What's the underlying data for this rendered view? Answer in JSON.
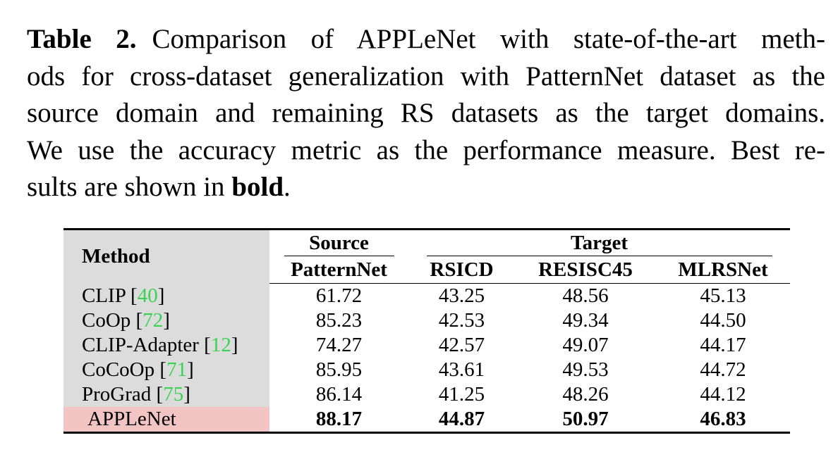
{
  "caption": {
    "label": "Table 2.",
    "lines": [
      "Comparison of APPLeNet with state-of-the-art meth-",
      "ods for cross-dataset generalization with PatternNet dataset as the",
      "source domain and remaining RS datasets as the target domains.",
      "We use the accuracy metric as the performance measure. Best re-"
    ],
    "last_line_prefix": "sults are shown in ",
    "last_line_bold": "bold",
    "last_line_suffix": "."
  },
  "table": {
    "method_header": "Method",
    "source_header": "Source",
    "target_header": "Target",
    "columns": [
      "PatternNet",
      "RSICD",
      "RESISC45",
      "MLRSNet"
    ],
    "rows": [
      {
        "method": "CLIP ",
        "cite": "40",
        "values": [
          "61.72",
          "43.25",
          "48.56",
          "45.13"
        ]
      },
      {
        "method": "CoOp ",
        "cite": "72",
        "values": [
          "85.23",
          "42.53",
          "49.34",
          "44.50"
        ]
      },
      {
        "method": "CLIP-Adapter ",
        "cite": "12",
        "values": [
          "74.27",
          "42.57",
          "49.07",
          "44.17"
        ]
      },
      {
        "method": "CoCoOp ",
        "cite": "71",
        "values": [
          "85.95",
          "43.61",
          "49.53",
          "44.72"
        ]
      },
      {
        "method": "ProGrad ",
        "cite": "75",
        "values": [
          "86.14",
          "41.25",
          "48.26",
          "44.12"
        ]
      }
    ],
    "ours": {
      "method": "APPLeNet",
      "values": [
        "88.17",
        "44.87",
        "50.97",
        "46.83"
      ]
    }
  },
  "colors": {
    "method_bg": "#dcdcdc",
    "ours_bg": "#f3c4c4",
    "citation": "#39d353"
  }
}
